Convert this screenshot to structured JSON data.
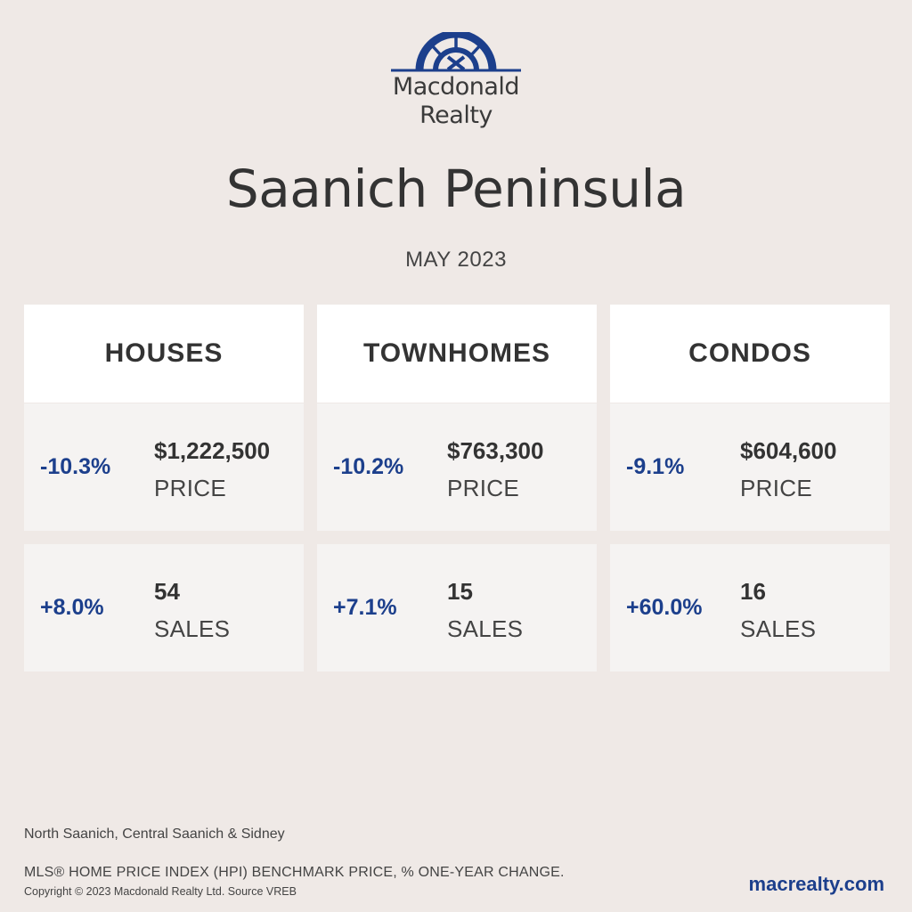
{
  "brand": {
    "name_line1": "Macdonald",
    "name_line2": "Realty",
    "logo_icon": "compass-arch-logo",
    "accent_color": "#1c3f8c"
  },
  "title": "Saanich Peninsula",
  "subtitle": "MAY 2023",
  "columns": [
    {
      "heading": "HOUSES",
      "price": {
        "change": "-10.3%",
        "value": "$1,222,500",
        "label": "PRICE"
      },
      "sales": {
        "change": "+8.0%",
        "value": "54",
        "label": "SALES"
      }
    },
    {
      "heading": "TOWNHOMES",
      "price": {
        "change": "-10.2%",
        "value": "$763,300",
        "label": "PRICE"
      },
      "sales": {
        "change": "+7.1%",
        "value": "15",
        "label": "SALES"
      }
    },
    {
      "heading": "CONDOS",
      "price": {
        "change": "-9.1%",
        "value": "$604,600",
        "label": "PRICE"
      },
      "sales": {
        "change": "+60.0%",
        "value": "16",
        "label": "SALES"
      }
    }
  ],
  "footer": {
    "area": "North Saanich, Central Saanich & Sidney",
    "index_note": "MLS® HOME PRICE INDEX (HPI) BENCHMARK PRICE, % ONE-YEAR CHANGE.",
    "copyright": "Copyright © 2023 Macdonald Realty Ltd. Source VREB",
    "website": "macrealty.com"
  }
}
